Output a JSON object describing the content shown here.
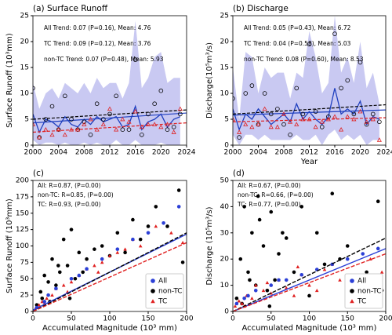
{
  "chart_data": [
    {
      "type": "line",
      "title": "(a) Surface Runoff",
      "y_label": "Surface Runoff (10³mm)",
      "x": [
        2000,
        2001,
        2002,
        2003,
        2004,
        2005,
        2006,
        2007,
        2008,
        2009,
        2010,
        2011,
        2012,
        2013,
        2014,
        2015,
        2016,
        2017,
        2018,
        2019,
        2020,
        2021,
        2022,
        2023
      ],
      "xlim": [
        2000,
        2024
      ],
      "xticks": [
        2000,
        2004,
        2008,
        2012,
        2016,
        2020,
        2024
      ],
      "ylim": [
        0,
        25
      ],
      "yticks": [
        0,
        5,
        10,
        15,
        20,
        25
      ],
      "band": {
        "color": "#c9c9f2",
        "upper": [
          12,
          7,
          10,
          11,
          9,
          12,
          11,
          10,
          12,
          10,
          13,
          11,
          12,
          12,
          9,
          12,
          24,
          11,
          13,
          17,
          18,
          12,
          13,
          13
        ],
        "lower": [
          1,
          0,
          0.5,
          0.5,
          0,
          0.5,
          0,
          0,
          0.5,
          0,
          0.5,
          0,
          0,
          1,
          0,
          0,
          1,
          0,
          0,
          0,
          0.5,
          0,
          0,
          0
        ]
      },
      "series": [
        {
          "color": "#1f3fbf",
          "marker": "line",
          "trend": [
            4.3,
            6.2
          ],
          "dash": false,
          "values": [
            6,
            2.5,
            5,
            4.5,
            3.5,
            5.5,
            4,
            3.5,
            5,
            4,
            5.5,
            4.5,
            5,
            5.5,
            3.5,
            4,
            7.5,
            3,
            4.5,
            5,
            6,
            3.5,
            5,
            5.5
          ]
        },
        {
          "color": "#000000",
          "marker": "circle",
          "trend": [
            5,
            6.8
          ],
          "dash": true,
          "values": [
            11,
            1.5,
            5,
            7.5,
            3,
            9.5,
            5,
            3,
            4.5,
            2,
            8,
            5,
            6,
            9.5,
            3,
            3,
            16.5,
            2,
            6,
            8,
            10.5,
            3,
            3.5,
            6
          ]
        },
        {
          "color": "#e02020",
          "marker": "triangle",
          "trend": [
            2.5,
            4.3
          ],
          "dash": true,
          "values": [
            4,
            1.5,
            3,
            2,
            3,
            2,
            3,
            3,
            4,
            5,
            3,
            4,
            7,
            3,
            5,
            4.5,
            6.5,
            3.5,
            4,
            4,
            3.5,
            4,
            2.5,
            7
          ]
        }
      ],
      "annotations": [
        {
          "text": "All Trend: 0.07 (P=0.16), Mean: 4.76",
          "color": "#1f3fbf"
        },
        {
          "text": "TC Trend: 0.09 (P=0.12), Mean: 3.76",
          "color": "#e02020"
        },
        {
          "text": "non-TC Trend: 0.07 (P=0.48), Mean: 5.93",
          "color": "#000000"
        }
      ]
    },
    {
      "type": "line",
      "title": "(b) Discharge",
      "y_label": "Discharge(10⁵m³/s)",
      "x_label": "Year",
      "x": [
        2000,
        2001,
        2002,
        2003,
        2004,
        2005,
        2006,
        2007,
        2008,
        2009,
        2010,
        2011,
        2012,
        2013,
        2014,
        2015,
        2016,
        2017,
        2018,
        2019,
        2020,
        2021,
        2022,
        2023
      ],
      "xlim": [
        2000,
        2024
      ],
      "xticks": [
        2000,
        2004,
        2008,
        2012,
        2016,
        2020,
        2024
      ],
      "ylim": [
        0,
        25
      ],
      "yticks": [
        0,
        5,
        10,
        15,
        20,
        25
      ],
      "band": {
        "color": "#c9c9f2",
        "upper": [
          15,
          5,
          18,
          17,
          10,
          15,
          13,
          14,
          14,
          9,
          14,
          13,
          22,
          17,
          10,
          12,
          25,
          14,
          17,
          12,
          20,
          11,
          14,
          8
        ],
        "lower": [
          2,
          0,
          2,
          2,
          1,
          2,
          1,
          1,
          1,
          1,
          2,
          1,
          1,
          2,
          0,
          2,
          3,
          1,
          2,
          1,
          2,
          0,
          1,
          1
        ]
      },
      "series": [
        {
          "color": "#1f3fbf",
          "marker": "line",
          "trend": [
            5.8,
            6.8
          ],
          "dash": false,
          "values": [
            7,
            3,
            6,
            5,
            7,
            5.5,
            4,
            5,
            6,
            4.5,
            8,
            5,
            6.5,
            5,
            4,
            5.5,
            11,
            6,
            7,
            6,
            8.5,
            4,
            5.5,
            5
          ]
        },
        {
          "color": "#000000",
          "marker": "circle",
          "trend": [
            6,
            7.8
          ],
          "dash": true,
          "values": [
            9,
            1.5,
            10,
            11.5,
            4,
            10,
            6,
            7,
            4,
            2,
            11,
            6,
            19.5,
            6.5,
            3.5,
            5.5,
            21.5,
            11,
            12.5,
            6,
            16,
            4,
            6,
            4.5
          ]
        },
        {
          "color": "#e02020",
          "marker": "triangle",
          "trend": [
            4.5,
            5.3
          ],
          "dash": true,
          "values": [
            5,
            2.5,
            4,
            3.5,
            4,
            7,
            3.5,
            3.5,
            6,
            4.5,
            4,
            5,
            5,
            3.5,
            4.5,
            5,
            5.5,
            3,
            5.5,
            5,
            6.5,
            4.5,
            5,
            1
          ]
        }
      ],
      "annotations": [
        {
          "text": "All Trend: 0.05 (P=0.43), Mean: 6.72",
          "color": "#1f3fbf"
        },
        {
          "text": "TC Trend: 0.04 (P=0.58), Mean: 5.03",
          "color": "#e02020"
        },
        {
          "text": "non-TC Trend: 0.08 (P=0.60), Mean: 8.53",
          "color": "#000000"
        }
      ]
    },
    {
      "type": "scatter",
      "title": "(c)",
      "y_label": "Surface Runoff (10³mm)",
      "x_label": "Accumulated Magnitude (10³ mm)",
      "xlim": [
        0,
        200
      ],
      "xticks": [
        0,
        50,
        100,
        150,
        200
      ],
      "ylim": [
        0,
        200
      ],
      "yticks": [
        0,
        25,
        50,
        75,
        100,
        125,
        150,
        175,
        200
      ],
      "legend": "lower right",
      "series": [
        {
          "name": "All",
          "color": "#2b3fd6",
          "marker": "circle",
          "fit": [
            2,
            118
          ],
          "dash": false,
          "x": [
            5,
            15,
            30,
            50,
            70,
            90,
            110,
            130,
            150,
            170,
            190,
            20,
            60
          ],
          "y": [
            6,
            15,
            35,
            50,
            65,
            80,
            95,
            110,
            120,
            135,
            160,
            25,
            55
          ]
        },
        {
          "name": "non-TC",
          "color": "#000000",
          "marker": "circle",
          "fit": [
            0,
            120
          ],
          "dash": true,
          "x": [
            5,
            10,
            15,
            20,
            25,
            30,
            35,
            40,
            45,
            50,
            55,
            60,
            70,
            80,
            90,
            100,
            110,
            120,
            130,
            140,
            150,
            160,
            175,
            190,
            195,
            12,
            22,
            33,
            48,
            65
          ],
          "y": [
            10,
            30,
            55,
            45,
            80,
            40,
            60,
            110,
            70,
            125,
            50,
            90,
            80,
            95,
            100,
            85,
            120,
            90,
            140,
            110,
            130,
            160,
            130,
            185,
            75,
            20,
            15,
            70,
            20,
            60
          ]
        },
        {
          "name": "TC",
          "color": "#e02020",
          "marker": "triangle",
          "fit": [
            0,
            105
          ],
          "dash": true,
          "x": [
            3,
            8,
            12,
            18,
            25,
            30,
            40,
            50,
            60,
            70,
            80,
            90,
            100,
            110,
            120,
            130,
            140,
            160,
            180,
            195,
            15,
            45,
            85
          ],
          "y": [
            4,
            10,
            15,
            20,
            25,
            35,
            40,
            45,
            55,
            65,
            70,
            75,
            85,
            90,
            95,
            110,
            100,
            130,
            120,
            105,
            12,
            30,
            60
          ]
        }
      ],
      "annotations": [
        {
          "text": "All: R=0.87, (P=0.00)",
          "color": "#1f3fbf"
        },
        {
          "text": "non-TC: R=0.85, (P=0.00)",
          "color": "#000000"
        },
        {
          "text": "TC: R=0.93, (P=0.00)",
          "color": "#e02020"
        }
      ]
    },
    {
      "type": "scatter",
      "title": "(d)",
      "y_label": "Discharge (10⁵m³/s)",
      "x_label": "Accumulated Magnitude (10³ mm)",
      "xlim": [
        0,
        200
      ],
      "xticks": [
        0,
        50,
        100,
        150,
        200
      ],
      "ylim": [
        0,
        50
      ],
      "yticks": [
        0,
        10,
        20,
        30,
        40,
        50
      ],
      "legend": "lower right",
      "series": [
        {
          "name": "All",
          "color": "#2b3fd6",
          "marker": "circle",
          "fit": [
            0,
            24
          ],
          "dash": false,
          "x": [
            5,
            15,
            30,
            50,
            70,
            90,
            110,
            130,
            150,
            170,
            190,
            20,
            60
          ],
          "y": [
            3,
            5,
            8,
            10,
            12,
            14,
            16,
            18,
            20,
            22,
            24,
            6,
            12
          ]
        },
        {
          "name": "non-TC",
          "color": "#000000",
          "marker": "circle",
          "fit": [
            0,
            28
          ],
          "dash": true,
          "x": [
            5,
            10,
            15,
            20,
            25,
            30,
            35,
            40,
            45,
            50,
            55,
            60,
            70,
            80,
            90,
            100,
            110,
            120,
            130,
            140,
            150,
            160,
            175,
            190,
            195,
            12,
            22,
            33,
            48,
            65
          ],
          "y": [
            5,
            20,
            40,
            15,
            30,
            10,
            35,
            25,
            8,
            38,
            12,
            22,
            28,
            15,
            40,
            6,
            30,
            18,
            45,
            20,
            25,
            10,
            15,
            42,
            8,
            3,
            12,
            44,
            2,
            30
          ]
        },
        {
          "name": "TC",
          "color": "#e02020",
          "marker": "triangle",
          "fit": [
            0,
            22
          ],
          "dash": true,
          "x": [
            3,
            8,
            12,
            18,
            25,
            30,
            40,
            50,
            60,
            70,
            80,
            90,
            100,
            110,
            120,
            130,
            140,
            160,
            180,
            195,
            15,
            45,
            85
          ],
          "y": [
            2,
            4,
            3,
            6,
            5,
            10,
            8,
            7,
            12,
            9,
            6,
            14,
            10,
            8,
            16,
            18,
            12,
            13,
            20,
            15,
            2,
            11,
            17
          ]
        }
      ],
      "annotations": [
        {
          "text": "All: R=0.67, (P=0.00)",
          "color": "#1f3fbf"
        },
        {
          "text": "non-TC: R=0.66, (P=0.00)",
          "color": "#000000"
        },
        {
          "text": "TC: R=0.77, (P=0.00)",
          "color": "#e02020"
        }
      ]
    }
  ]
}
